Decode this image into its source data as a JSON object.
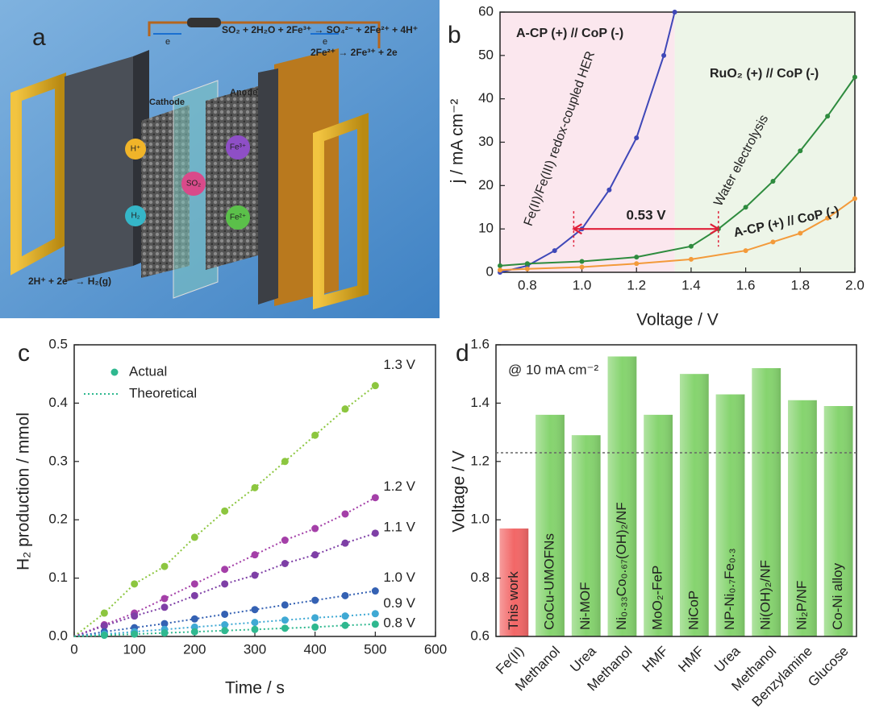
{
  "schematic": {
    "letter": "a",
    "equation_1": "SO₂ + 2H₂O + 2Fe³⁺ → SO₄²⁻ + 2Fe²⁺ + 4H⁺",
    "equation_2": "2Fe²⁺ → 2Fe³⁺ + 2e",
    "equation_3": "2H⁺ + 2e⁻ → H₂(g)",
    "cathode": "Cathode",
    "anode": "Anode",
    "electron_left": "e",
    "electron_right": "e",
    "species": [
      "H⁺",
      "H₂",
      "SO₂",
      "Fe³⁺",
      "Fe²⁺"
    ]
  },
  "chart_data": [
    {
      "type": "line",
      "letter": "b",
      "xlabel": "Voltage / V",
      "ylabel": "j / mA cm⁻²",
      "xlim": [
        0.7,
        2.0
      ],
      "ylim": [
        0,
        60
      ],
      "xticks": [
        0.8,
        {
          "value": 1,
          "label": "1.0"
        },
        1.2,
        1.4,
        1.6,
        1.8,
        {
          "value": 2,
          "label": "2.0"
        }
      ],
      "yticks": [
        0,
        10,
        20,
        30,
        40,
        50,
        60
      ],
      "regions": [
        {
          "from": 0.7,
          "to": 1.34,
          "color": "#fbe7ee"
        },
        {
          "from": 1.34,
          "to": 2.0,
          "color": "#edf5e8"
        }
      ],
      "series": [
        {
          "name": "A-CP (+) // CoP (-)",
          "color": "#3f48b8",
          "x": [
            0.7,
            0.8,
            0.9,
            1.0,
            1.1,
            1.2,
            1.3,
            1.34
          ],
          "values": [
            0,
            1.5,
            5,
            10,
            19,
            31,
            50,
            60
          ]
        },
        {
          "name": "RuO₂ (+) // CoP (-)",
          "color": "#2e8b3e",
          "x": [
            0.7,
            0.8,
            1.0,
            1.2,
            1.4,
            1.5,
            1.6,
            1.7,
            1.8,
            1.9,
            2.0
          ],
          "values": [
            1.5,
            2,
            2.5,
            3.5,
            6,
            10,
            15,
            21,
            28,
            36,
            45
          ]
        },
        {
          "name": "A-CP (+) // CoP (-)",
          "color": "#f39a3a",
          "x": [
            0.7,
            0.8,
            1.0,
            1.2,
            1.4,
            1.6,
            1.7,
            1.8,
            1.9,
            2.0
          ],
          "values": [
            0.5,
            0.8,
            1.2,
            2,
            3,
            5,
            7,
            9,
            12.5,
            17
          ]
        }
      ],
      "annotations": [
        "Fe(II)/Fe(III) redox-coupled HER",
        "Water electrolysis"
      ],
      "arrow": {
        "from": 0.97,
        "to": 1.5,
        "y": 10,
        "label": "0.53 V",
        "color": "#e0203a"
      }
    },
    {
      "type": "scatter",
      "letter": "c",
      "xlabel": "Time / s",
      "ylabel": "H₂ production / mmol",
      "xlim": [
        0,
        600
      ],
      "ylim": [
        0,
        0.5
      ],
      "xticks": [
        0,
        100,
        200,
        300,
        400,
        500,
        600
      ],
      "yticks": [
        {
          "value": 0,
          "label": "0.0"
        },
        0.1,
        0.2,
        0.3,
        0.4,
        0.5
      ],
      "legend": [
        "Actual",
        "Theoretical"
      ],
      "x": [
        50,
        100,
        150,
        200,
        250,
        300,
        350,
        400,
        450,
        500
      ],
      "series": [
        {
          "name": "1.3 V",
          "color": "#8cc63f",
          "values": [
            0.04,
            0.09,
            0.12,
            0.17,
            0.215,
            0.255,
            0.3,
            0.345,
            0.39,
            0.43
          ]
        },
        {
          "name": "1.2 V",
          "color": "#a43fa8",
          "values": [
            0.02,
            0.04,
            0.065,
            0.09,
            0.115,
            0.14,
            0.165,
            0.185,
            0.21,
            0.238
          ]
        },
        {
          "name": "1.1 V",
          "color": "#7e3fa6",
          "values": [
            0.018,
            0.035,
            0.05,
            0.07,
            0.09,
            0.105,
            0.125,
            0.14,
            0.16,
            0.177
          ]
        },
        {
          "name": "1.0 V",
          "color": "#3461b3",
          "values": [
            0.008,
            0.015,
            0.022,
            0.03,
            0.038,
            0.046,
            0.054,
            0.062,
            0.07,
            0.078
          ]
        },
        {
          "name": "0.9 V",
          "color": "#3fa9d4",
          "values": [
            0.004,
            0.008,
            0.012,
            0.016,
            0.02,
            0.024,
            0.028,
            0.032,
            0.035,
            0.039
          ]
        },
        {
          "name": "0.8 V",
          "color": "#2fb88f",
          "values": [
            0.002,
            0.004,
            0.006,
            0.008,
            0.01,
            0.012,
            0.014,
            0.016,
            0.019,
            0.021
          ]
        }
      ]
    },
    {
      "type": "bar",
      "letter": "d",
      "ylabel": "Voltage / V",
      "annotation": "@ 10 mA cm⁻²",
      "ylim": [
        0.6,
        1.6
      ],
      "yticks": [
        0.6,
        0.8,
        {
          "value": 1,
          "label": "1.0"
        },
        1.2,
        1.4,
        1.6
      ],
      "reference_line": 1.23,
      "categories": [
        "Fe(II)",
        "Methanol",
        "Urea",
        "Methanol",
        "HMF",
        "HMF",
        "Urea",
        "Methanol",
        "Benzylamine",
        "Glucose"
      ],
      "bar_labels": [
        "This work",
        "CoCu-UMOFNs",
        "Ni-MOF",
        "Ni₀.₃₃Co₀.₆₇(OH)₂/NF",
        "MoO₂-FeP",
        "NiCoP",
        "NP-Ni₀.₇Fe₀.₃",
        "Ni(OH)₂/NF",
        "Ni₂P/NF",
        "Co-Ni alloy"
      ],
      "values": [
        0.97,
        1.36,
        1.29,
        1.56,
        1.36,
        1.5,
        1.43,
        1.52,
        1.41,
        1.39
      ],
      "colors": [
        "#f26767",
        "#86d46f",
        "#86d46f",
        "#86d46f",
        "#86d46f",
        "#86d46f",
        "#86d46f",
        "#86d46f",
        "#86d46f",
        "#86d46f"
      ]
    }
  ]
}
